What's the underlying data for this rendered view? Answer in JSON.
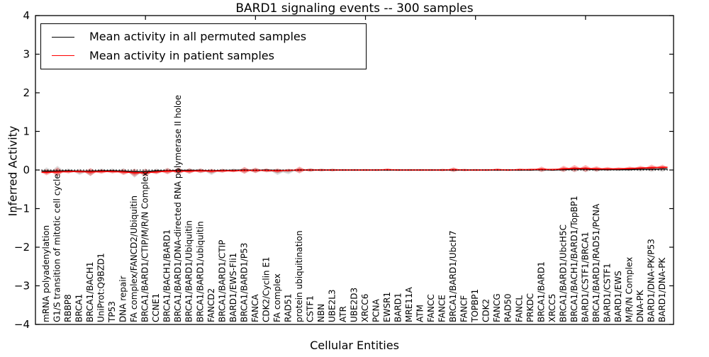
{
  "title": "BARD1 signaling events -- 300 samples",
  "axes": {
    "ylabel": "Inferred Activity",
    "xlabel": "Cellular Entities",
    "yticks": [
      {
        "label": "4",
        "value": 4
      },
      {
        "label": "3",
        "value": 3
      },
      {
        "label": "2",
        "value": 2
      },
      {
        "label": "1",
        "value": 1
      },
      {
        "label": "0",
        "value": 0
      },
      {
        "label": "−1",
        "value": -1
      },
      {
        "label": "−2",
        "value": -2
      },
      {
        "label": "−3",
        "value": -3
      },
      {
        "label": "−4",
        "value": -4
      }
    ],
    "ylim": [
      -4,
      4
    ]
  },
  "legend": [
    {
      "label": "Mean activity in all permuted samples",
      "color": "#000000"
    },
    {
      "label": "Mean activity in patient samples",
      "color": "#ff0000"
    }
  ],
  "chart_data": {
    "type": "line",
    "title": "BARD1 signaling events -- 300 samples",
    "xlabel": "Cellular Entities",
    "ylabel": "Inferred Activity",
    "ylim": [
      -4,
      4
    ],
    "grid": false,
    "legend_position": "upper left",
    "baseline": 0,
    "top_axis_ticks": [
      10,
      20,
      30,
      40,
      50
    ],
    "categories": [
      "mRNA polyadenylation",
      "G1/S transition of mitotic cell cycle",
      "RBBP8",
      "BRCA1",
      "BRCA1/BACH1",
      "UniProt:Q9BZD1",
      "TP53",
      "DNA repair",
      "FA complex/FANCD2/Ubiquitin",
      "BRCA1/BARD1/CTIP/M/R/N Complex",
      "CCNE1",
      "BRCA1/BACH1/BARD1",
      "BRCA1/BARD1/DNA-directed RNA polymerase II holoe",
      "BRCA1/BARD1/Ubiquitin",
      "BRCA1/BARD1/ubiquitin",
      "FANCD2",
      "BRCA1/BARD1/CTIP",
      "BARD1/EWS-Fli1",
      "BRCA1/BARD1/P53",
      "FANCA",
      "CDK2/Cyclin E1",
      "FA complex",
      "RAD51",
      "protein ubiquitination",
      "CSTF1",
      "NBN",
      "UBE2L3",
      "ATR",
      "UBE2D3",
      "XRCC6",
      "PCNA",
      "EWSR1",
      "BARD1",
      "MRE11A",
      "ATM",
      "FANCC",
      "FANCE",
      "BRCA1/BARD1/UbcH7",
      "FANCF",
      "TOPBP1",
      "CDK2",
      "FANCG",
      "RAD50",
      "FANCL",
      "PRKDC",
      "BRCA1/BARD1",
      "XRCC5",
      "BRCA1/BARD1/UbcH5C",
      "BRCA1/BACH1/BARD1/TopBP1",
      "BARD1/CSTF1/BRCA1",
      "BRCA1/BARD1/RAD51/PCNA",
      "BARD1/CSTF1",
      "BARD1/EWS",
      "M/R/N Complex",
      "DNA-PK",
      "BARD1/DNA-PK/P53",
      "BARD1/DNA-PK"
    ],
    "series": [
      {
        "name": "Mean activity in all permuted samples",
        "color": "#000000",
        "values": [
          -0.03,
          -0.03,
          -0.02,
          -0.03,
          -0.03,
          -0.02,
          -0.02,
          -0.03,
          -0.04,
          -0.04,
          -0.02,
          -0.02,
          -0.01,
          -0.01,
          -0.01,
          -0.02,
          -0.01,
          -0.01,
          0,
          -0.01,
          0,
          -0.01,
          -0.01,
          0,
          0,
          0,
          0,
          0,
          0,
          0,
          0,
          0,
          0,
          0,
          0,
          0,
          0,
          0,
          0,
          0,
          0,
          0,
          0,
          0,
          0,
          0.01,
          0,
          0.01,
          0.02,
          0.02,
          0.01,
          0.01,
          0.01,
          0.01,
          0.02,
          0.02,
          0.03
        ]
      },
      {
        "name": "Mean activity in patient samples",
        "color": "#ff0000",
        "values": [
          -0.06,
          -0.05,
          -0.04,
          -0.04,
          -0.05,
          -0.04,
          -0.04,
          -0.05,
          -0.07,
          -0.07,
          -0.05,
          -0.03,
          -0.03,
          -0.03,
          -0.02,
          -0.03,
          -0.02,
          -0.02,
          -0.01,
          -0.01,
          -0.01,
          -0.02,
          -0.01,
          0,
          0,
          0,
          0,
          0,
          0,
          0,
          0,
          0.01,
          0,
          0,
          0,
          0,
          0,
          0.01,
          0,
          0,
          0,
          0.01,
          0,
          0.01,
          0.01,
          0.02,
          0.01,
          0.03,
          0.04,
          0.04,
          0.03,
          0.03,
          0.03,
          0.04,
          0.05,
          0.06,
          0.07
        ]
      }
    ],
    "bands": [
      {
        "name": "permuted samples distribution",
        "color": "#888888",
        "center": [
          -0.02,
          -0.02,
          -0.02,
          -0.05,
          -0.06,
          -0.02,
          -0.02,
          -0.03,
          -0.08,
          -0.07,
          -0.03,
          -0.02,
          -0.03,
          -0.02,
          -0.02,
          -0.05,
          -0.02,
          -0.01,
          -0.01,
          -0.01,
          -0.01,
          -0.05,
          -0.04,
          0,
          0,
          0,
          0,
          0,
          0,
          0,
          0,
          0,
          0,
          0,
          0,
          0,
          0,
          0,
          0,
          0,
          0,
          0,
          0,
          0,
          0,
          0,
          0,
          0.01,
          0.01,
          0.01,
          0.01,
          0.01,
          0.01,
          0.01,
          0.01,
          0.01,
          0.01
        ],
        "half_width": [
          0.09,
          0.13,
          0.06,
          0.08,
          0.1,
          0.06,
          0.06,
          0.08,
          0.12,
          0.11,
          0.07,
          0.08,
          0.09,
          0.07,
          0.06,
          0.08,
          0.05,
          0.05,
          0.08,
          0.07,
          0.05,
          0.08,
          0.07,
          0.07,
          0.05,
          0.04,
          0.04,
          0.03,
          0.03,
          0.03,
          0.03,
          0.03,
          0.03,
          0.03,
          0.03,
          0.03,
          0.03,
          0.05,
          0.03,
          0.03,
          0.03,
          0.03,
          0.03,
          0.03,
          0.03,
          0.05,
          0.03,
          0.06,
          0.07,
          0.07,
          0.06,
          0.04,
          0.04,
          0.04,
          0.05,
          0.06,
          0.06
        ]
      },
      {
        "name": "patient samples distribution",
        "color": "#ff0000",
        "center": [
          -0.06,
          -0.05,
          -0.04,
          -0.04,
          -0.05,
          -0.04,
          -0.04,
          -0.05,
          -0.07,
          -0.07,
          -0.05,
          -0.03,
          -0.03,
          -0.03,
          -0.02,
          -0.03,
          -0.02,
          -0.02,
          -0.01,
          -0.01,
          -0.01,
          -0.02,
          -0.01,
          0,
          0,
          0,
          0,
          0,
          0,
          0,
          0,
          0.01,
          0,
          0,
          0,
          0,
          0,
          0.01,
          0,
          0,
          0,
          0.01,
          0,
          0.01,
          0.01,
          0.02,
          0.01,
          0.03,
          0.04,
          0.04,
          0.03,
          0.03,
          0.03,
          0.04,
          0.05,
          0.06,
          0.07
        ],
        "half_width": [
          0.08,
          0.12,
          0.05,
          0.05,
          0.1,
          0.06,
          0.05,
          0.08,
          0.1,
          0.1,
          0.06,
          0.08,
          0.09,
          0.07,
          0.06,
          0.06,
          0.05,
          0.04,
          0.09,
          0.07,
          0.05,
          0.06,
          0.04,
          0.09,
          0.04,
          0.03,
          0.03,
          0.02,
          0.02,
          0.02,
          0.02,
          0.03,
          0.02,
          0.02,
          0.02,
          0.02,
          0.03,
          0.06,
          0.03,
          0.02,
          0.02,
          0.03,
          0.02,
          0.03,
          0.03,
          0.07,
          0.03,
          0.08,
          0.09,
          0.09,
          0.07,
          0.05,
          0.04,
          0.05,
          0.06,
          0.08,
          0.07
        ]
      }
    ]
  }
}
